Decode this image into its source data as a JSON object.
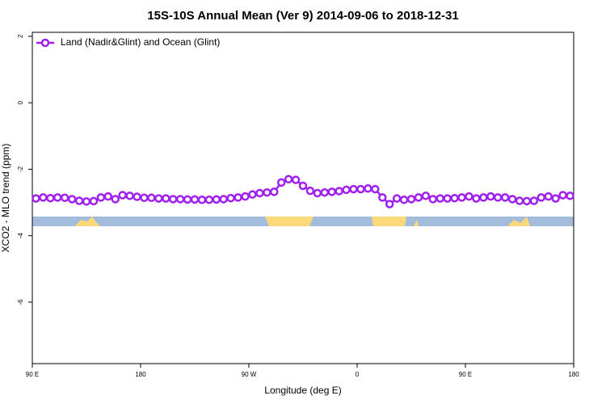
{
  "chart_data": {
    "type": "line",
    "title": "15S-10S Annual Mean (Ver 9)   2014-09-06 to 2018-12-31",
    "x_label": "Longitude (deg E)",
    "y_label": "XCO2 - MLO trend (ppm)",
    "x": [
      93,
      99,
      105,
      111,
      117,
      123,
      129,
      135,
      141,
      147,
      153,
      159,
      165,
      171,
      177,
      183,
      189,
      195,
      201,
      207,
      213,
      219,
      225,
      231,
      237,
      243,
      249,
      255,
      261,
      267,
      273,
      279,
      285,
      291,
      297,
      303,
      309,
      315,
      321,
      327,
      333,
      339,
      345,
      351,
      357,
      363,
      369,
      375,
      381,
      387,
      393,
      399,
      405,
      411,
      417,
      423,
      429,
      435,
      441,
      447,
      453,
      459,
      465,
      471,
      477,
      483,
      489,
      495,
      501,
      507,
      513,
      519,
      525,
      531,
      537
    ],
    "series": [
      {
        "name": "Land (Nadir&Glint) and Ocean (Glint)",
        "color": "#a020f0",
        "values": [
          -2.88,
          -2.85,
          -2.87,
          -2.85,
          -2.86,
          -2.9,
          -2.95,
          -2.97,
          -2.96,
          -2.85,
          -2.82,
          -2.9,
          -2.78,
          -2.8,
          -2.83,
          -2.86,
          -2.86,
          -2.88,
          -2.88,
          -2.9,
          -2.9,
          -2.91,
          -2.91,
          -2.92,
          -2.92,
          -2.91,
          -2.9,
          -2.87,
          -2.85,
          -2.82,
          -2.76,
          -2.72,
          -2.7,
          -2.68,
          -2.4,
          -2.3,
          -2.32,
          -2.5,
          -2.65,
          -2.72,
          -2.7,
          -2.68,
          -2.66,
          -2.62,
          -2.6,
          -2.6,
          -2.58,
          -2.6,
          -2.85,
          -3.05,
          -2.88,
          -2.92,
          -2.9,
          -2.85,
          -2.8,
          -2.9,
          -2.88,
          -2.88,
          -2.87,
          -2.85,
          -2.82,
          -2.88,
          -2.85,
          -2.82,
          -2.85,
          -2.85,
          -2.9,
          -2.95,
          -2.96,
          -2.95,
          -2.85,
          -2.82,
          -2.88,
          -2.78,
          -2.8
        ]
      }
    ],
    "xlim": [
      90,
      540
    ],
    "xticks": [
      {
        "value": 90,
        "label": "90 E"
      },
      180,
      {
        "value": 270,
        "label": "90 W"
      },
      {
        "value": 360,
        "label": "0"
      },
      {
        "value": 450,
        "label": "90 E"
      },
      {
        "value": 540,
        "label": "180"
      }
    ],
    "ylim": [
      -7.85,
      2.12
    ],
    "yticks": [
      -6,
      -4,
      -2,
      0,
      2
    ],
    "legend": "top-left"
  }
}
